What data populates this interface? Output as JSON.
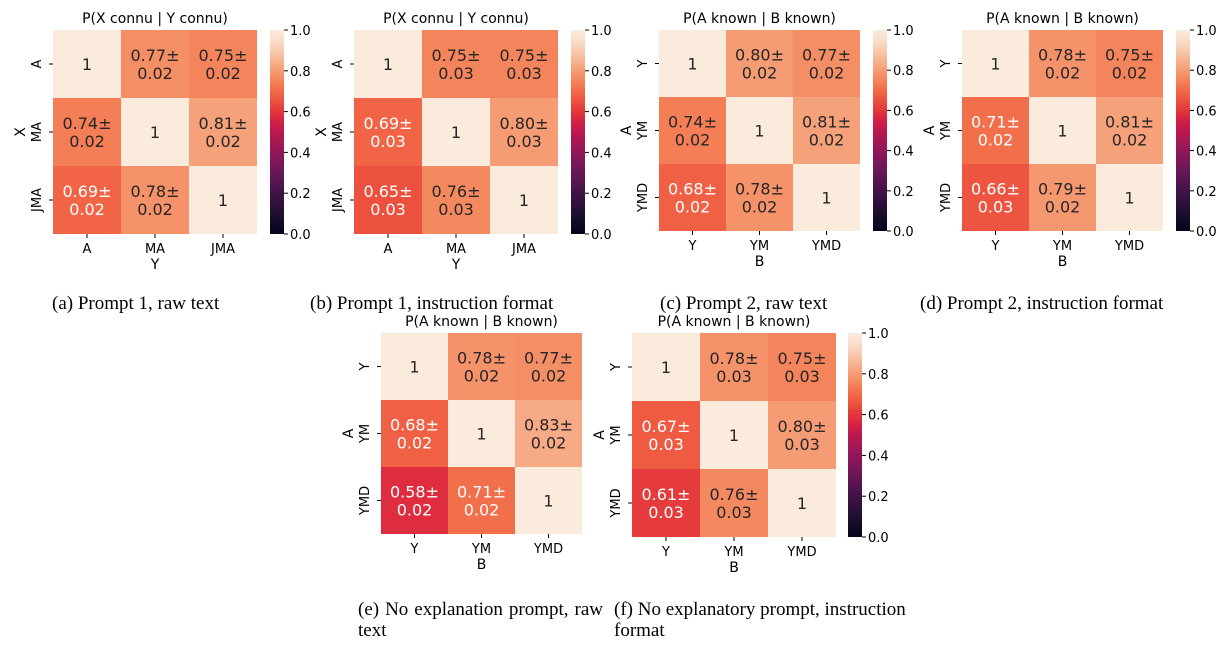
{
  "chart_data": [
    {
      "type": "heatmap",
      "title": "P(X connu | Y connu)",
      "xlabel": "Y",
      "ylabel": "X",
      "categories": [
        "A",
        "MA",
        "JMA"
      ],
      "cells": [
        [
          "1",
          "0.77±\n0.02",
          "0.75±\n0.02"
        ],
        [
          "0.74±\n0.02",
          "1",
          "0.81±\n0.02"
        ],
        [
          "0.69±\n0.02",
          "0.78±\n0.02",
          "1"
        ]
      ],
      "values": [
        [
          1,
          0.77,
          0.75
        ],
        [
          0.74,
          1,
          0.81
        ],
        [
          0.69,
          0.78,
          1
        ]
      ],
      "colorbar": {
        "range": [
          0,
          1
        ],
        "ticks": [
          "0.0",
          "0.2",
          "0.4",
          "0.6",
          "0.8",
          "1.0"
        ]
      },
      "caption": "(a) Prompt 1, raw text"
    },
    {
      "type": "heatmap",
      "title": "P(X connu | Y connu)",
      "xlabel": "Y",
      "ylabel": "X",
      "categories": [
        "A",
        "MA",
        "JMA"
      ],
      "cells": [
        [
          "1",
          "0.75±\n0.03",
          "0.75±\n0.03"
        ],
        [
          "0.69±\n0.03",
          "1",
          "0.80±\n0.03"
        ],
        [
          "0.65±\n0.03",
          "0.76±\n0.03",
          "1"
        ]
      ],
      "values": [
        [
          1,
          0.75,
          0.75
        ],
        [
          0.69,
          1,
          0.8
        ],
        [
          0.65,
          0.76,
          1
        ]
      ],
      "colorbar": {
        "range": [
          0,
          1
        ],
        "ticks": [
          "0.0",
          "0.2",
          "0.4",
          "0.6",
          "0.8",
          "1.0"
        ]
      },
      "caption": "(b) Prompt 1, instruction format"
    },
    {
      "type": "heatmap",
      "title": "P(A known | B known)",
      "xlabel": "B",
      "ylabel": "A",
      "categories": [
        "Y",
        "YM",
        "YMD"
      ],
      "cells": [
        [
          "1",
          "0.80±\n0.02",
          "0.77±\n0.02"
        ],
        [
          "0.74±\n0.02",
          "1",
          "0.81±\n0.02"
        ],
        [
          "0.68±\n0.02",
          "0.78±\n0.02",
          "1"
        ]
      ],
      "values": [
        [
          1,
          0.8,
          0.77
        ],
        [
          0.74,
          1,
          0.81
        ],
        [
          0.68,
          0.78,
          1
        ]
      ],
      "colorbar": {
        "range": [
          0,
          1
        ],
        "ticks": [
          "0.0",
          "0.2",
          "0.4",
          "0.6",
          "0.8",
          "1.0"
        ]
      },
      "caption": "(c) Prompt 2, raw text"
    },
    {
      "type": "heatmap",
      "title": "P(A known | B known)",
      "xlabel": "B",
      "ylabel": "A",
      "categories": [
        "Y",
        "YM",
        "YMD"
      ],
      "cells": [
        [
          "1",
          "0.78±\n0.02",
          "0.75±\n0.02"
        ],
        [
          "0.71±\n0.02",
          "1",
          "0.81±\n0.02"
        ],
        [
          "0.66±\n0.03",
          "0.79±\n0.02",
          "1"
        ]
      ],
      "values": [
        [
          1,
          0.78,
          0.75
        ],
        [
          0.71,
          1,
          0.81
        ],
        [
          0.66,
          0.79,
          1
        ]
      ],
      "colorbar": {
        "range": [
          0,
          1
        ],
        "ticks": [
          "0.0",
          "0.2",
          "0.4",
          "0.6",
          "0.8",
          "1.0"
        ]
      },
      "caption": "(d) Prompt 2, instruction format"
    },
    {
      "type": "heatmap",
      "title": "P(A known | B known)",
      "xlabel": "B",
      "ylabel": "A",
      "categories": [
        "Y",
        "YM",
        "YMD"
      ],
      "cells": [
        [
          "1",
          "0.78±\n0.02",
          "0.77±\n0.02"
        ],
        [
          "0.68±\n0.02",
          "1",
          "0.83±\n0.02"
        ],
        [
          "0.58±\n0.02",
          "0.71±\n0.02",
          "1"
        ]
      ],
      "values": [
        [
          1,
          0.78,
          0.77
        ],
        [
          0.68,
          1,
          0.83
        ],
        [
          0.58,
          0.71,
          1
        ]
      ],
      "caption": "(e) No explanation prompt, raw text"
    },
    {
      "type": "heatmap",
      "title": "P(A known | B known)",
      "xlabel": "B",
      "ylabel": "A",
      "categories": [
        "Y",
        "YM",
        "YMD"
      ],
      "cells": [
        [
          "1",
          "0.78±\n0.03",
          "0.75±\n0.03"
        ],
        [
          "0.67±\n0.03",
          "1",
          "0.80±\n0.03"
        ],
        [
          "0.61±\n0.03",
          "0.76±\n0.03",
          "1"
        ]
      ],
      "values": [
        [
          1,
          0.78,
          0.75
        ],
        [
          0.67,
          1,
          0.8
        ],
        [
          0.61,
          0.76,
          1
        ]
      ],
      "colorbar": {
        "range": [
          0,
          1
        ],
        "ticks": [
          "0.0",
          "0.2",
          "0.4",
          "0.6",
          "0.8",
          "1.0"
        ]
      },
      "caption": "(f) No explanatory prompt, instruction format"
    }
  ]
}
